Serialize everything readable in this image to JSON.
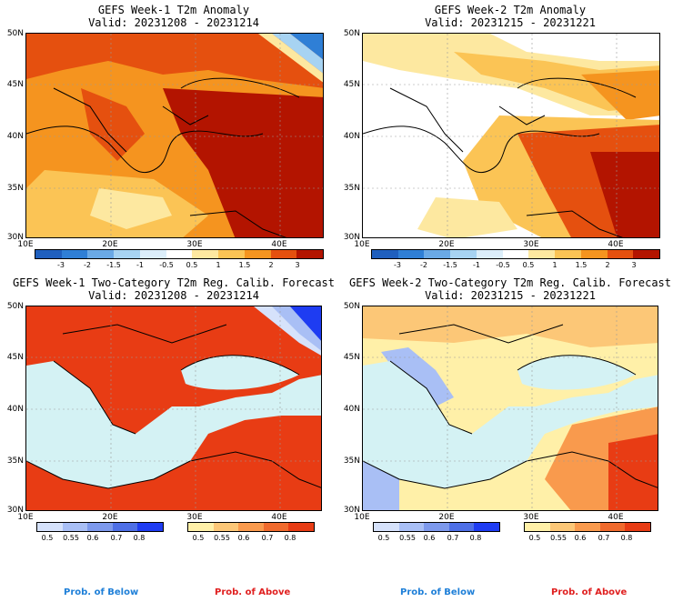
{
  "colors": {
    "ocean_light": "#d4f2f4",
    "anomaly_scale": [
      "#1f5fbe",
      "#2f7fd6",
      "#6aa9e6",
      "#a7d3f2",
      "#dceefa",
      "#ffffff",
      "#fde8a0",
      "#fbc455",
      "#f5941f",
      "#e5500f",
      "#b31400"
    ],
    "above_scale": [
      "#fff0a8",
      "#fcc777",
      "#f99a4d",
      "#f06a2d",
      "#e83c14"
    ],
    "below_scale": [
      "#d6e2fb",
      "#a9bff5",
      "#7d99ec",
      "#4e6fe6",
      "#1e3cf2"
    ],
    "below_label": "#1e7fd8",
    "above_label": "#e02020"
  },
  "panels": [
    {
      "id": "week1-anomaly",
      "title": "GEFS Week-1 T2m Anomaly",
      "valid": "Valid: 20231208 - 20231214",
      "lat_labels": [
        "50N",
        "45N",
        "40N",
        "35N",
        "30N"
      ],
      "lon_labels": [
        "10E",
        "20E",
        "30E",
        "40E"
      ],
      "colorbar_labels": [
        "-3",
        "-2",
        "-1.5",
        "-1",
        "-0.5",
        "0.5",
        "1",
        "1.5",
        "2",
        "3"
      ]
    },
    {
      "id": "week2-anomaly",
      "title": "GEFS Week-2 T2m Anomaly",
      "valid": "Valid: 20231215 - 20231221",
      "lat_labels": [
        "50N",
        "45N",
        "40N",
        "35N",
        "30N"
      ],
      "lon_labels": [
        "10E",
        "20E",
        "30E",
        "40E"
      ],
      "colorbar_labels": [
        "-3",
        "-2",
        "-1.5",
        "-1",
        "-0.5",
        "0.5",
        "1",
        "1.5",
        "2",
        "3"
      ]
    },
    {
      "id": "week1-prob",
      "title": "GEFS Week-1 Two-Category T2m Reg. Calib. Forecast",
      "valid": "Valid: 20231208 - 20231214",
      "lat_labels": [
        "50N",
        "45N",
        "40N",
        "35N",
        "30N"
      ],
      "lon_labels": [
        "10E",
        "20E",
        "30E",
        "40E"
      ],
      "below_labels": [
        "0.5",
        "0.55",
        "0.6",
        "0.7",
        "0.8"
      ],
      "above_labels": [
        "0.5",
        "0.55",
        "0.6",
        "0.7",
        "0.8"
      ]
    },
    {
      "id": "week2-prob",
      "title": "GEFS Week-2 Two-Category T2m Reg. Calib. Forecast",
      "valid": "Valid: 20231215 - 20231221",
      "lat_labels": [
        "50N",
        "45N",
        "40N",
        "35N",
        "30N"
      ],
      "lon_labels": [
        "10E",
        "20E",
        "30E",
        "40E"
      ],
      "below_labels": [
        "0.5",
        "0.55",
        "0.6",
        "0.7",
        "0.8"
      ],
      "above_labels": [
        "0.5",
        "0.55",
        "0.6",
        "0.7",
        "0.8"
      ]
    }
  ],
  "legend": {
    "prob_below": "Prob. of Below",
    "prob_above": "Prob. of Above"
  }
}
